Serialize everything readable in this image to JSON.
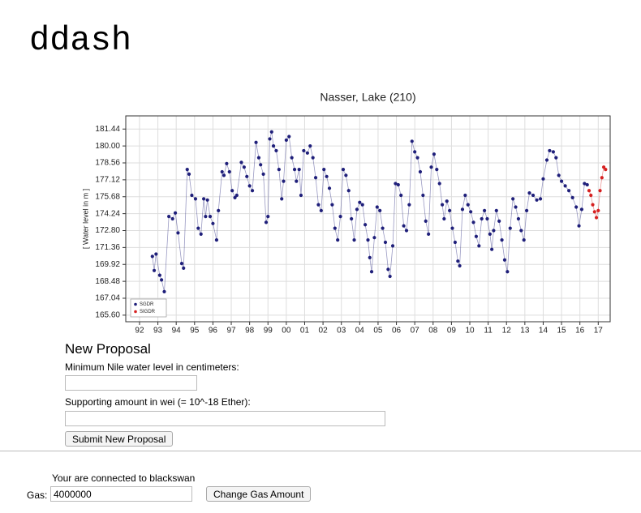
{
  "header": {
    "title": "ddash"
  },
  "chart_data": {
    "type": "line",
    "title": "Nasser, Lake (210)",
    "y_label": "[ Water level in m ]",
    "xlim": [
      1991.25,
      2017.65
    ],
    "xticks": [
      {
        "value": 1992,
        "label": "92"
      },
      {
        "value": 1993,
        "label": "93"
      },
      {
        "value": 1994,
        "label": "94"
      },
      {
        "value": 1995,
        "label": "95"
      },
      {
        "value": 1996,
        "label": "96"
      },
      {
        "value": 1997,
        "label": "97"
      },
      {
        "value": 1998,
        "label": "98"
      },
      {
        "value": 1999,
        "label": "99"
      },
      {
        "value": 2000,
        "label": "00"
      },
      {
        "value": 2001,
        "label": "01"
      },
      {
        "value": 2002,
        "label": "02"
      },
      {
        "value": 2003,
        "label": "03"
      },
      {
        "value": 2004,
        "label": "04"
      },
      {
        "value": 2005,
        "label": "05"
      },
      {
        "value": 2006,
        "label": "06"
      },
      {
        "value": 2007,
        "label": "07"
      },
      {
        "value": 2008,
        "label": "08"
      },
      {
        "value": 2009,
        "label": "09"
      },
      {
        "value": 2010,
        "label": "10"
      },
      {
        "value": 2011,
        "label": "11"
      },
      {
        "value": 2012,
        "label": "12"
      },
      {
        "value": 2013,
        "label": "13"
      },
      {
        "value": 2014,
        "label": "14"
      },
      {
        "value": 2015,
        "label": "15"
      },
      {
        "value": 2016,
        "label": "16"
      },
      {
        "value": 2017,
        "label": "17"
      }
    ],
    "ylim": [
      165.04,
      182.56
    ],
    "yticks": [
      {
        "value": 165.6,
        "label": "165.60"
      },
      {
        "value": 167.04,
        "label": "167.04"
      },
      {
        "value": 168.48,
        "label": "168.48"
      },
      {
        "value": 169.92,
        "label": "169.92"
      },
      {
        "value": 171.36,
        "label": "171.36"
      },
      {
        "value": 172.8,
        "label": "172.80"
      },
      {
        "value": 174.24,
        "label": "174.24"
      },
      {
        "value": 175.68,
        "label": "175.68"
      },
      {
        "value": 177.12,
        "label": "177.12"
      },
      {
        "value": 178.56,
        "label": "178.56"
      },
      {
        "value": 180,
        "label": "180.00"
      },
      {
        "value": 181.44,
        "label": "181.44"
      }
    ],
    "grid": true,
    "legend": "lower left",
    "series": [
      {
        "name": "SGDR",
        "color": "#1f1f7a",
        "x": [
          1992.7,
          1992.8,
          1992.9,
          1993.1,
          1993.2,
          1993.35,
          1993.6,
          1993.8,
          1993.95,
          1994.1,
          1994.3,
          1994.4,
          1994.6,
          1994.7,
          1994.85,
          1995.05,
          1995.2,
          1995.35,
          1995.5,
          1995.6,
          1995.7,
          1995.85,
          1996.0,
          1996.2,
          1996.3,
          1996.5,
          1996.6,
          1996.75,
          1996.9,
          1997.05,
          1997.2,
          1997.3,
          1997.55,
          1997.7,
          1997.85,
          1998.0,
          1998.15,
          1998.35,
          1998.5,
          1998.6,
          1998.75,
          1998.9,
          1999.0,
          1999.1,
          1999.2,
          1999.3,
          1999.45,
          1999.6,
          1999.75,
          1999.85,
          2000.0,
          2000.15,
          2000.3,
          2000.45,
          2000.55,
          2000.7,
          2000.8,
          2000.95,
          2001.15,
          2001.3,
          2001.45,
          2001.6,
          2001.75,
          2001.9,
          2002.05,
          2002.2,
          2002.35,
          2002.5,
          2002.65,
          2002.8,
          2002.95,
          2003.1,
          2003.25,
          2003.4,
          2003.55,
          2003.7,
          2003.85,
          2004.0,
          2004.15,
          2004.3,
          2004.45,
          2004.55,
          2004.65,
          2004.8,
          2004.95,
          2005.1,
          2005.25,
          2005.4,
          2005.55,
          2005.65,
          2005.8,
          2005.95,
          2006.1,
          2006.25,
          2006.4,
          2006.55,
          2006.7,
          2006.85,
          2007.0,
          2007.15,
          2007.3,
          2007.45,
          2007.6,
          2007.75,
          2007.9,
          2008.05,
          2008.2,
          2008.35,
          2008.5,
          2008.6,
          2008.75,
          2008.9,
          2009.05,
          2009.2,
          2009.35,
          2009.45,
          2009.6,
          2009.75,
          2009.9,
          2010.05,
          2010.2,
          2010.35,
          2010.5,
          2010.65,
          2010.8,
          2010.95,
          2011.1,
          2011.2,
          2011.3,
          2011.45,
          2011.6,
          2011.75,
          2011.9,
          2012.05,
          2012.2,
          2012.35,
          2012.5,
          2012.65,
          2012.8,
          2012.95,
          2013.1,
          2013.25,
          2013.45,
          2013.65,
          2013.85,
          2014.0,
          2014.2,
          2014.35,
          2014.55,
          2014.7,
          2014.85,
          2015.0,
          2015.2,
          2015.4,
          2015.6,
          2015.8,
          2015.95,
          2016.1,
          2016.25,
          2016.4
        ],
        "values": [
          170.6,
          169.4,
          170.8,
          169.0,
          168.6,
          167.6,
          174.0,
          173.8,
          174.3,
          172.6,
          170.0,
          169.6,
          178.0,
          177.6,
          175.8,
          175.5,
          173.0,
          172.5,
          175.5,
          174.0,
          175.4,
          174.0,
          173.4,
          172.0,
          174.5,
          177.8,
          177.5,
          178.5,
          177.8,
          176.2,
          175.6,
          175.8,
          178.6,
          178.2,
          177.4,
          176.6,
          176.2,
          180.3,
          179.0,
          178.4,
          177.6,
          173.5,
          174.0,
          180.6,
          181.2,
          180.0,
          179.6,
          178.0,
          175.5,
          177.0,
          180.5,
          180.8,
          179.0,
          178.0,
          177.0,
          178.0,
          175.8,
          179.6,
          179.4,
          180.0,
          179.0,
          177.3,
          175.0,
          174.5,
          178.0,
          177.4,
          176.4,
          175.0,
          173.0,
          172.0,
          174.0,
          178.0,
          177.5,
          176.2,
          173.8,
          172.0,
          174.6,
          175.2,
          175.0,
          173.3,
          172.0,
          170.5,
          169.3,
          172.2,
          174.8,
          174.5,
          173.0,
          171.8,
          169.5,
          168.9,
          171.5,
          176.8,
          176.7,
          175.8,
          173.2,
          172.8,
          175.0,
          180.4,
          179.5,
          179.0,
          177.8,
          175.8,
          173.6,
          172.5,
          178.2,
          179.3,
          178.0,
          176.8,
          175.0,
          173.8,
          175.3,
          174.5,
          173.0,
          171.8,
          170.2,
          169.8,
          174.6,
          175.8,
          175.0,
          174.4,
          173.5,
          172.3,
          171.5,
          173.8,
          174.5,
          173.8,
          172.5,
          171.2,
          172.8,
          174.5,
          173.6,
          172.0,
          170.3,
          169.3,
          173.0,
          175.5,
          174.8,
          173.8,
          172.8,
          172.0,
          174.5,
          176.0,
          175.8,
          175.4,
          175.5,
          177.2,
          178.8,
          179.6,
          179.5,
          179.0,
          177.5,
          177.0,
          176.6,
          176.2,
          175.6,
          174.8,
          173.2,
          174.6,
          176.8,
          176.7
        ]
      },
      {
        "name": "SIGDR",
        "color": "#d62020",
        "x": [
          2016.5,
          2016.6,
          2016.7,
          2016.8,
          2016.9,
          2017.0,
          2017.1,
          2017.2,
          2017.3,
          2017.4
        ],
        "values": [
          176.2,
          175.8,
          175.0,
          174.4,
          173.9,
          174.5,
          176.2,
          177.3,
          178.2,
          178.0
        ]
      }
    ]
  },
  "form": {
    "heading": "New Proposal",
    "level_label": "Minimum Nile water level in centimeters:",
    "amount_label": "Supporting amount in wei (= 10^-18 Ether):",
    "submit_button": "Submit New Proposal"
  },
  "footer": {
    "status": "Your are connected to blackswan",
    "gas_label": "Gas:",
    "gas_value": "4000000",
    "gas_button": "Change Gas Amount"
  }
}
